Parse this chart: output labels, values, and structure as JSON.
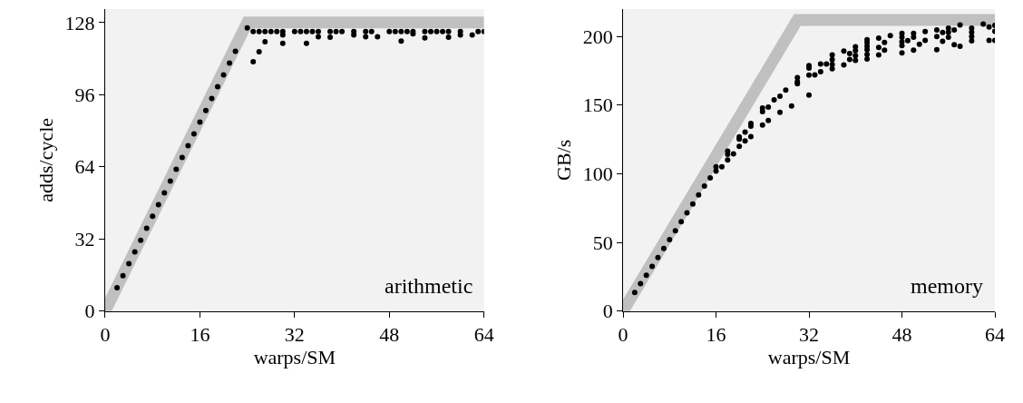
{
  "chart_data": [
    {
      "type": "scatter",
      "xlabel": "warps/SM",
      "ylabel": "adds/cycle",
      "xlim": [
        0,
        64
      ],
      "ylim": [
        0,
        134
      ],
      "xticks": [
        0,
        16,
        32,
        48,
        64
      ],
      "yticks": [
        0,
        32,
        64,
        96,
        128
      ],
      "grid": false,
      "annotations": [
        "arithmetic"
      ],
      "series": [
        {
          "type": "line",
          "marker": "none",
          "color": "#c0c0c0",
          "x": [
            0,
            24,
            64
          ],
          "values": [
            0,
            128,
            128
          ]
        },
        {
          "marker": "circle",
          "color": "#000000",
          "x": [
            2,
            3,
            4,
            5,
            6,
            7,
            8,
            9,
            10,
            11,
            12,
            13,
            14,
            15,
            16,
            17,
            18,
            19,
            20,
            21,
            22,
            24,
            25,
            25,
            26,
            26,
            27,
            27,
            28,
            29,
            30,
            30,
            30,
            32,
            33,
            34,
            34,
            35,
            36,
            36,
            38,
            38,
            39,
            40,
            42,
            42,
            44,
            44,
            45,
            46,
            48,
            49,
            50,
            50,
            51,
            52,
            52,
            54,
            54,
            55,
            56,
            57,
            58,
            58,
            60,
            60,
            62,
            63,
            64
          ],
          "values": [
            10.3,
            15.7,
            21,
            26.2,
            31.4,
            36.7,
            42,
            47.2,
            52.4,
            57.6,
            62.9,
            68.1,
            73.4,
            78.6,
            83.8,
            89,
            94.3,
            99.5,
            104.8,
            110,
            115.2,
            125.6,
            124,
            110.6,
            124,
            115,
            124,
            119.5,
            124,
            124,
            124,
            122.5,
            118.8,
            124,
            124,
            124,
            118.8,
            124,
            124,
            121.7,
            124,
            121.5,
            124,
            124,
            124,
            122.5,
            124,
            121.7,
            124,
            121.7,
            124,
            124,
            124,
            119.8,
            124,
            124,
            123,
            124,
            121.2,
            124,
            124,
            124,
            124,
            121.5,
            124,
            122.5,
            122.5,
            124,
            124
          ]
        }
      ]
    },
    {
      "type": "scatter",
      "xlabel": "warps/SM",
      "ylabel": "GB/s",
      "xlim": [
        0,
        64
      ],
      "ylim": [
        0,
        220
      ],
      "xticks": [
        0,
        16,
        32,
        48,
        64
      ],
      "yticks": [
        0,
        50,
        100,
        150,
        200
      ],
      "grid": false,
      "annotations": [
        "memory"
      ],
      "series": [
        {
          "type": "line",
          "marker": "none",
          "color": "#c0c0c0",
          "x": [
            0,
            30,
            64
          ],
          "values": [
            0,
            212,
            212
          ]
        },
        {
          "marker": "circle",
          "color": "#000000",
          "x": [
            2,
            3,
            4,
            5,
            6,
            7,
            8,
            9,
            10,
            11,
            12,
            13,
            14,
            15,
            16,
            16,
            17,
            18,
            18,
            18,
            19,
            20,
            20,
            20,
            21,
            21,
            22,
            22,
            22,
            24,
            24,
            24,
            25,
            25,
            26,
            27,
            27,
            28,
            29,
            30,
            30,
            30,
            32,
            32,
            32,
            32,
            33,
            34,
            34,
            35,
            36,
            36,
            36,
            36,
            38,
            38,
            39,
            39,
            40,
            40,
            40,
            40,
            42,
            42,
            42,
            42,
            42,
            42,
            44,
            44,
            44,
            45,
            45,
            46,
            48,
            48,
            48,
            48,
            48,
            49,
            50,
            50,
            50,
            51,
            52,
            52,
            54,
            54,
            54,
            55,
            55,
            56,
            56,
            56,
            57,
            57,
            58,
            58,
            60,
            60,
            60,
            60,
            62,
            63,
            63,
            64,
            64,
            64
          ],
          "values": [
            13.5,
            20,
            26,
            32.5,
            39,
            45.5,
            52,
            58.5,
            65,
            71.5,
            78,
            84.5,
            91,
            97,
            105,
            102,
            105,
            116.4,
            114.2,
            110,
            114.4,
            126.9,
            125.3,
            120,
            130.3,
            123.9,
            136.7,
            134.6,
            127.1,
            147.9,
            145.3,
            135.5,
            148.5,
            138.7,
            153.9,
            156.5,
            144.7,
            161,
            149.4,
            170,
            167,
            165.5,
            178.8,
            176.9,
            171.9,
            157.3,
            172,
            180,
            174.3,
            180,
            186.5,
            183,
            179.6,
            176.4,
            189.3,
            179.2,
            187.5,
            183.3,
            192.5,
            189.7,
            186,
            182.6,
            197.6,
            195.5,
            192.9,
            190.3,
            186.9,
            183.5,
            198.7,
            192,
            186.5,
            195.7,
            190,
            200.6,
            202.3,
            199.4,
            196.1,
            193.3,
            188,
            197,
            202.3,
            199.4,
            190,
            194.4,
            203.6,
            197.2,
            204.7,
            200,
            190.3,
            202.9,
            196.5,
            206,
            203,
            199.4,
            204.7,
            194,
            208.4,
            192.9,
            206.1,
            203.1,
            200,
            196.8,
            209,
            206.8,
            197.2,
            208,
            203.7,
            197.2
          ]
        }
      ]
    }
  ]
}
